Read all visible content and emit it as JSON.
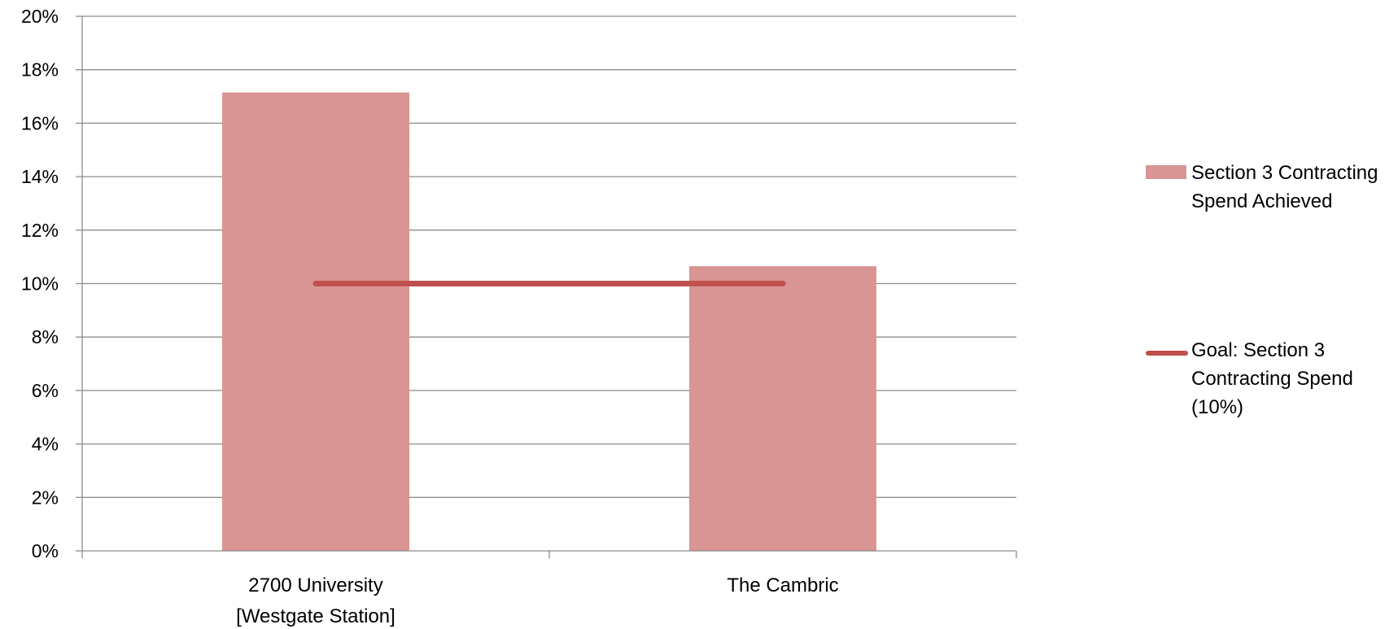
{
  "chart_data": {
    "type": "bar",
    "categories": [
      "2700 University [Westgate Station]",
      "The Cambric"
    ],
    "category_lines": [
      [
        "2700 University",
        "[Westgate Station]"
      ],
      [
        "The Cambric"
      ]
    ],
    "series": [
      {
        "name": "Section 3 Contracting Spend Achieved",
        "kind": "bar",
        "color": "#d99594",
        "values": [
          0.1715,
          0.1065
        ]
      },
      {
        "name": "Goal: Section 3 Contracting Spend (10%)",
        "kind": "line",
        "color": "#c0504d",
        "values": [
          0.1,
          0.1
        ]
      }
    ],
    "ylim": [
      0,
      0.2
    ],
    "yticks": [
      "0%",
      "2%",
      "4%",
      "6%",
      "8%",
      "10%",
      "12%",
      "14%",
      "16%",
      "18%",
      "20%"
    ],
    "grid": true,
    "legend_position": "right",
    "title": "",
    "xlabel": "",
    "ylabel": ""
  },
  "legend": {
    "bar_label": "Section 3 Contracting Spend Achieved",
    "line_label": "Goal: Section 3 Contracting Spend (10%)"
  }
}
